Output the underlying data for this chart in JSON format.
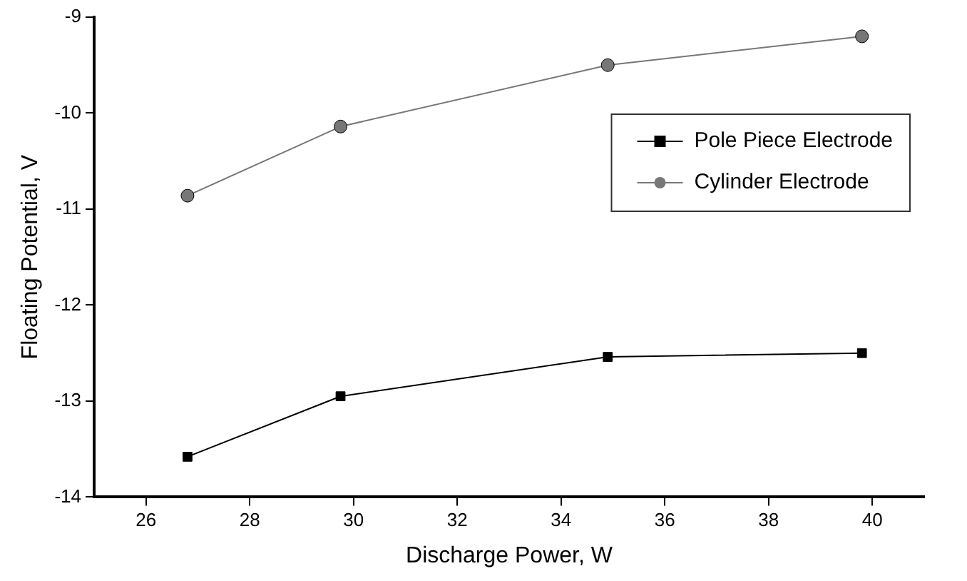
{
  "chart_data": {
    "type": "line",
    "xlabel": "Discharge Power, W",
    "ylabel": "Floating Potential, V",
    "xlim": [
      25,
      41
    ],
    "xticks": [
      26,
      28,
      30,
      32,
      34,
      36,
      38,
      40
    ],
    "ylim": [
      -14,
      -9
    ],
    "yticks": [
      -14,
      -13,
      -12,
      -11,
      -10,
      -9
    ],
    "grid": false,
    "legend": "top right",
    "line_style": "solid",
    "series": [
      {
        "name": "Pole Piece Electrode",
        "color": "#000000",
        "marker": "square",
        "x": [
          26.8,
          29.75,
          34.9,
          39.8
        ],
        "values": [
          -13.58,
          -12.95,
          -12.54,
          -12.5
        ]
      },
      {
        "name": "Cylinder Electrode",
        "color": "#777777",
        "marker": "circle",
        "x": [
          26.8,
          29.75,
          34.9,
          39.8
        ],
        "values": [
          -10.86,
          -10.14,
          -9.5,
          -9.2
        ]
      }
    ]
  }
}
